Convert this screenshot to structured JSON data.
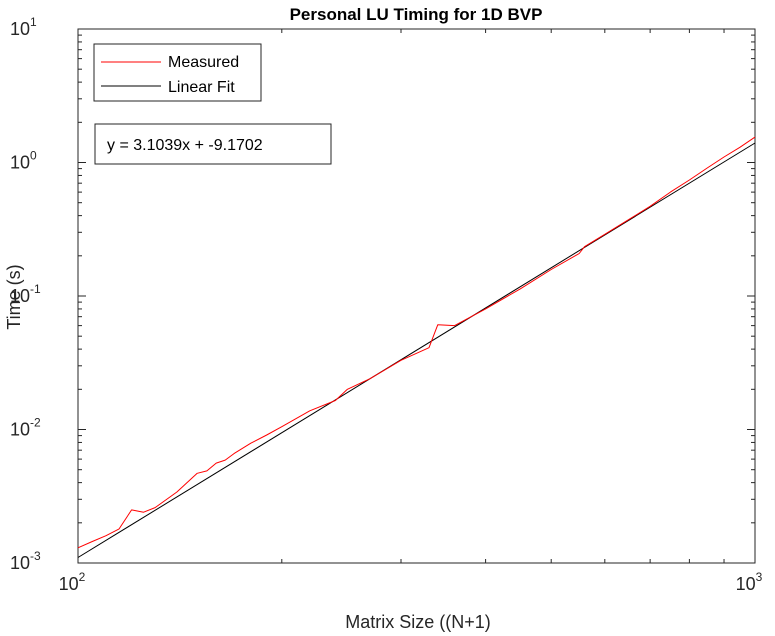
{
  "chart_data": {
    "type": "line",
    "title": "Personal LU Timing for 1D BVP",
    "xlabel": "Matrix Size ((N+1)",
    "ylabel": "Time (s)",
    "xscale": "log",
    "yscale": "log",
    "xlim": [
      100,
      1000
    ],
    "ylim": [
      0.001,
      10
    ],
    "x_ticks": [
      {
        "base": "10",
        "exp": "2",
        "value": 100
      },
      {
        "base": "10",
        "exp": "3",
        "value": 1000
      }
    ],
    "y_ticks": [
      {
        "base": "10",
        "exp": "-3",
        "value": 0.001
      },
      {
        "base": "10",
        "exp": "-2",
        "value": 0.01
      },
      {
        "base": "10",
        "exp": "-1",
        "value": 0.1
      },
      {
        "base": "10",
        "exp": "0",
        "value": 1
      },
      {
        "base": "10",
        "exp": "1",
        "value": 10
      }
    ],
    "grid": false,
    "legend_position": "top-left",
    "annotation": "y = 3.1039x + -9.1702",
    "series": [
      {
        "name": "Measured",
        "color": "#ff0000",
        "x": [
          100,
          105,
          110,
          115,
          120,
          125,
          130,
          140,
          150,
          155,
          160,
          165,
          170,
          180,
          190,
          200,
          220,
          240,
          250,
          270,
          300,
          330,
          340,
          360,
          400,
          450,
          500,
          550,
          560,
          600,
          650,
          700,
          750,
          800,
          850,
          900,
          950,
          1000
        ],
        "y": [
          0.0013,
          0.00145,
          0.0016,
          0.0018,
          0.0025,
          0.0024,
          0.0026,
          0.0034,
          0.0047,
          0.0049,
          0.0056,
          0.0059,
          0.0066,
          0.0079,
          0.0091,
          0.0105,
          0.0138,
          0.0165,
          0.02,
          0.024,
          0.033,
          0.041,
          0.061,
          0.06,
          0.08,
          0.113,
          0.158,
          0.208,
          0.234,
          0.29,
          0.372,
          0.47,
          0.6,
          0.74,
          0.91,
          1.1,
          1.3,
          1.55
        ]
      },
      {
        "name": "Linear Fit",
        "color": "#000000",
        "x": [
          100,
          1000
        ],
        "y": [
          0.0011,
          1.4
        ]
      }
    ]
  }
}
